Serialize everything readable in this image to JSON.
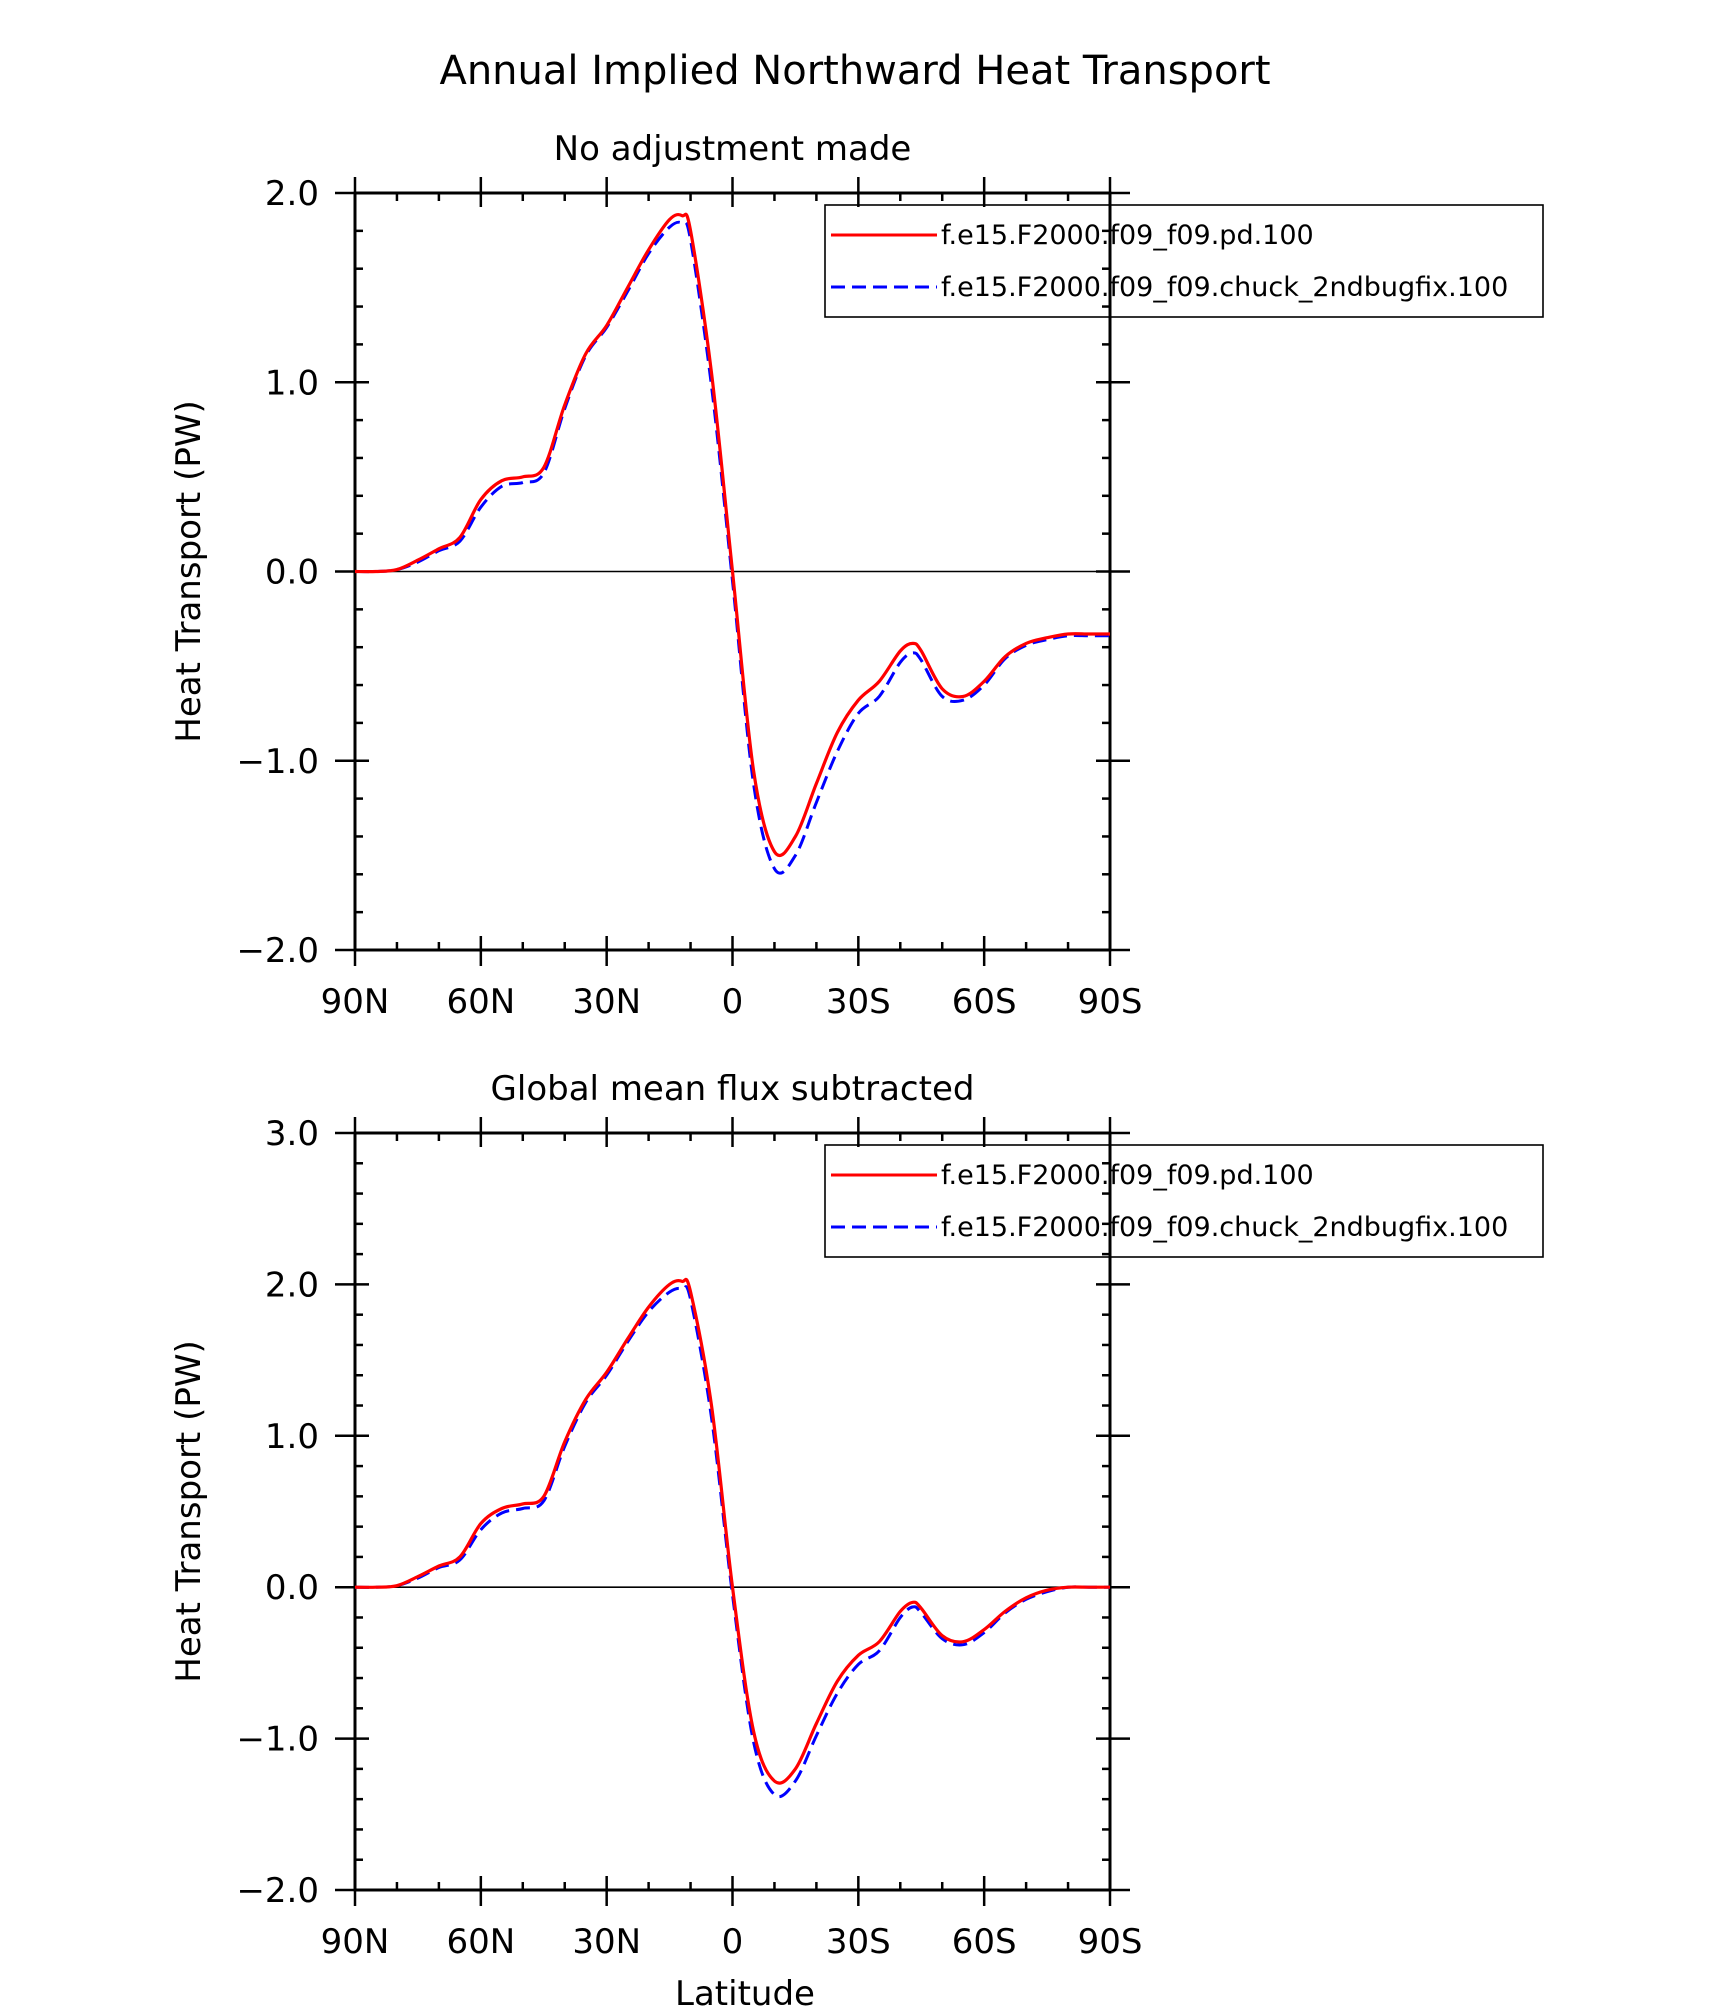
{
  "figure": {
    "title": "Annual Implied Northward Heat Transport"
  },
  "chart_data": [
    {
      "type": "line",
      "title": "No adjustment made",
      "xlabel": "",
      "ylabel": "Heat Transport (PW)",
      "xlim": [
        90,
        -90
      ],
      "ylim": [
        -2.0,
        2.0
      ],
      "xticks": [
        {
          "value": 90,
          "label": "90N"
        },
        {
          "value": 60,
          "label": "60N"
        },
        {
          "value": 30,
          "label": "30N"
        },
        {
          "value": 0,
          "label": "0"
        },
        {
          "value": -30,
          "label": "30S"
        },
        {
          "value": -60,
          "label": "60S"
        },
        {
          "value": -90,
          "label": "90S"
        }
      ],
      "yticks": [
        {
          "value": 2.0,
          "label": "2.0"
        },
        {
          "value": 1.0,
          "label": "1.0"
        },
        {
          "value": 0.0,
          "label": "0.0"
        },
        {
          "value": -1.0,
          "label": "−1.0"
        },
        {
          "value": -2.0,
          "label": "−2.0"
        }
      ],
      "legend_position": "top-right",
      "x": [
        90,
        85,
        80,
        75,
        70,
        65,
        60,
        55,
        50,
        45,
        40,
        35,
        30,
        25,
        20,
        15,
        12,
        10,
        5,
        0,
        -5,
        -10,
        -15,
        -20,
        -25,
        -30,
        -35,
        -40,
        -43,
        -45,
        -50,
        -55,
        -60,
        -65,
        -70,
        -75,
        -80,
        -85,
        -90
      ],
      "series": [
        {
          "name": "f.e15.F2000.f09_f09.pd.100",
          "color": "#ff0000",
          "style": "solid",
          "values": [
            0.0,
            0.0,
            0.01,
            0.06,
            0.12,
            0.18,
            0.38,
            0.48,
            0.5,
            0.55,
            0.88,
            1.15,
            1.3,
            1.5,
            1.7,
            1.86,
            1.88,
            1.8,
            1.05,
            0.0,
            -1.05,
            -1.48,
            -1.4,
            -1.12,
            -0.85,
            -0.68,
            -0.58,
            -0.42,
            -0.38,
            -0.42,
            -0.62,
            -0.66,
            -0.58,
            -0.45,
            -0.38,
            -0.35,
            -0.33,
            -0.33,
            -0.33
          ]
        },
        {
          "name": "f.e15.F2000.f09_f09.chuck_2ndbugfix.100",
          "color": "#0000ff",
          "style": "dashed",
          "values": [
            0.0,
            0.0,
            0.01,
            0.05,
            0.11,
            0.16,
            0.34,
            0.45,
            0.47,
            0.52,
            0.86,
            1.14,
            1.29,
            1.48,
            1.68,
            1.82,
            1.84,
            1.75,
            0.98,
            -0.05,
            -1.12,
            -1.57,
            -1.5,
            -1.22,
            -0.95,
            -0.75,
            -0.66,
            -0.48,
            -0.43,
            -0.47,
            -0.66,
            -0.68,
            -0.6,
            -0.46,
            -0.39,
            -0.36,
            -0.34,
            -0.34,
            -0.34
          ]
        }
      ]
    },
    {
      "type": "line",
      "title": "Global mean flux subtracted",
      "xlabel": "Latitude",
      "ylabel": "Heat Transport (PW)",
      "xlim": [
        90,
        -90
      ],
      "ylim": [
        -2.0,
        3.0
      ],
      "xticks": [
        {
          "value": 90,
          "label": "90N"
        },
        {
          "value": 60,
          "label": "60N"
        },
        {
          "value": 30,
          "label": "30N"
        },
        {
          "value": 0,
          "label": "0"
        },
        {
          "value": -30,
          "label": "30S"
        },
        {
          "value": -60,
          "label": "60S"
        },
        {
          "value": -90,
          "label": "90S"
        }
      ],
      "yticks": [
        {
          "value": 3.0,
          "label": "3.0"
        },
        {
          "value": 2.0,
          "label": "2.0"
        },
        {
          "value": 1.0,
          "label": "1.0"
        },
        {
          "value": 0.0,
          "label": "0.0"
        },
        {
          "value": -1.0,
          "label": "−1.0"
        },
        {
          "value": -2.0,
          "label": "−2.0"
        }
      ],
      "legend_position": "top-right",
      "x": [
        90,
        85,
        80,
        75,
        70,
        65,
        60,
        55,
        50,
        45,
        40,
        35,
        30,
        25,
        20,
        15,
        12,
        10,
        5,
        0,
        -5,
        -10,
        -15,
        -20,
        -25,
        -30,
        -35,
        -40,
        -43,
        -45,
        -50,
        -55,
        -60,
        -65,
        -70,
        -75,
        -80,
        -85,
        -90
      ],
      "series": [
        {
          "name": "f.e15.F2000.f09_f09.pd.100",
          "color": "#ff0000",
          "style": "solid",
          "values": [
            0.0,
            0.0,
            0.01,
            0.07,
            0.14,
            0.2,
            0.42,
            0.52,
            0.55,
            0.6,
            0.96,
            1.24,
            1.42,
            1.64,
            1.85,
            2.0,
            2.02,
            1.95,
            1.2,
            0.0,
            -0.95,
            -1.28,
            -1.2,
            -0.9,
            -0.62,
            -0.45,
            -0.36,
            -0.16,
            -0.1,
            -0.14,
            -0.32,
            -0.36,
            -0.28,
            -0.16,
            -0.07,
            -0.02,
            0.0,
            0.0,
            0.0
          ]
        },
        {
          "name": "f.e15.F2000.f09_f09.chuck_2ndbugfix.100",
          "color": "#0000ff",
          "style": "dashed",
          "values": [
            0.0,
            0.0,
            0.01,
            0.06,
            0.13,
            0.18,
            0.38,
            0.49,
            0.52,
            0.57,
            0.93,
            1.22,
            1.4,
            1.62,
            1.82,
            1.95,
            1.97,
            1.9,
            1.12,
            -0.05,
            -1.02,
            -1.37,
            -1.28,
            -0.98,
            -0.7,
            -0.51,
            -0.42,
            -0.2,
            -0.13,
            -0.17,
            -0.34,
            -0.38,
            -0.3,
            -0.17,
            -0.08,
            -0.03,
            0.0,
            0.0,
            0.0
          ]
        }
      ]
    }
  ]
}
